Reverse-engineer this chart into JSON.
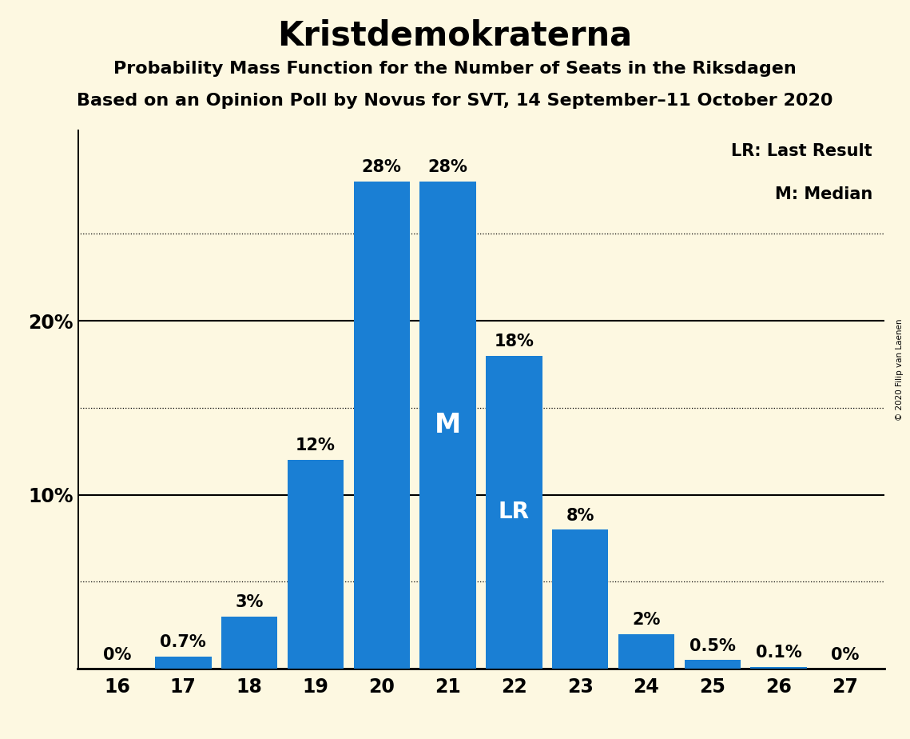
{
  "title": "Kristdemokraterna",
  "subtitle1": "Probability Mass Function for the Number of Seats in the Riksdagen",
  "subtitle2": "Based on an Opinion Poll by Novus for SVT, 14 September–11 October 2020",
  "copyright": "© 2020 Filip van Laenen",
  "categories": [
    16,
    17,
    18,
    19,
    20,
    21,
    22,
    23,
    24,
    25,
    26,
    27
  ],
  "values": [
    0.0,
    0.7,
    3.0,
    12.0,
    28.0,
    28.0,
    18.0,
    8.0,
    2.0,
    0.5,
    0.1,
    0.0
  ],
  "labels": [
    "0%",
    "0.7%",
    "3%",
    "12%",
    "28%",
    "28%",
    "18%",
    "8%",
    "2%",
    "0.5%",
    "0.1%",
    "0%"
  ],
  "bar_color": "#1a7fd4",
  "background_color": "#fdf8e1",
  "median_bar": 21,
  "lr_bar": 22,
  "solid_yticks": [
    10,
    20
  ],
  "dotted_yticks": [
    5,
    15,
    25
  ],
  "ylim": [
    0,
    31
  ],
  "legend_lr": "LR: Last Result",
  "legend_m": "M: Median",
  "title_fontsize": 30,
  "subtitle_fontsize": 16,
  "bar_label_fontsize": 15,
  "tick_fontsize": 17,
  "median_label_fontsize": 24,
  "lr_label_fontsize": 20
}
